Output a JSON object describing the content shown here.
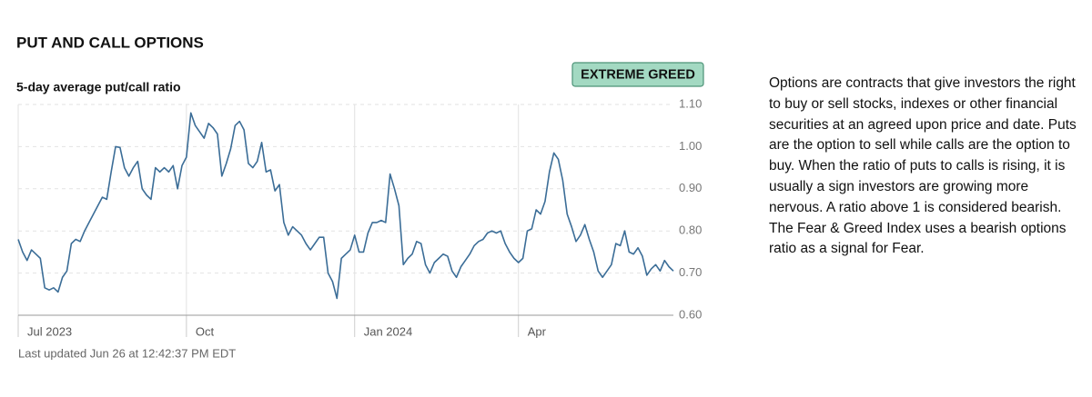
{
  "title": "PUT AND CALL OPTIONS",
  "badge": "EXTREME GREED",
  "footer": "Last updated Jun 26 at 12:42:37 PM EDT",
  "description": "Options are contracts that give investors the right to buy or sell stocks, indexes or other financial securities at an agreed upon price and date. Puts are the option to sell while calls are the option to buy. When the ratio of puts to calls is rising, it is usually a sign investors are growing more nervous. A ratio above 1 is considered bearish. The Fear & Greed Index uses a bearish options ratio as a signal for Fear.",
  "chart_data": {
    "type": "line",
    "title": "5-day average put/call ratio",
    "color": "#3b6d97",
    "grid": true,
    "values": [
      0.78,
      0.75,
      0.73,
      0.755,
      0.745,
      0.735,
      0.665,
      0.66,
      0.665,
      0.655,
      0.69,
      0.705,
      0.77,
      0.78,
      0.775,
      0.8,
      0.82,
      0.84,
      0.86,
      0.88,
      0.875,
      0.94,
      1.0,
      0.998,
      0.95,
      0.93,
      0.95,
      0.965,
      0.9,
      0.885,
      0.875,
      0.95,
      0.94,
      0.95,
      0.94,
      0.955,
      0.9,
      0.955,
      0.975,
      1.08,
      1.05,
      1.035,
      1.02,
      1.055,
      1.045,
      1.03,
      0.93,
      0.96,
      0.995,
      1.05,
      1.06,
      1.04,
      0.96,
      0.95,
      0.965,
      1.01,
      0.94,
      0.945,
      0.895,
      0.91,
      0.82,
      0.79,
      0.81,
      0.8,
      0.79,
      0.77,
      0.755,
      0.77,
      0.785,
      0.785,
      0.7,
      0.68,
      0.64,
      0.735,
      0.745,
      0.755,
      0.79,
      0.75,
      0.75,
      0.795,
      0.82,
      0.82,
      0.825,
      0.82,
      0.935,
      0.9,
      0.86,
      0.72,
      0.735,
      0.745,
      0.775,
      0.77,
      0.72,
      0.7,
      0.725,
      0.735,
      0.745,
      0.74,
      0.705,
      0.69,
      0.715,
      0.73,
      0.745,
      0.765,
      0.775,
      0.78,
      0.795,
      0.8,
      0.795,
      0.8,
      0.77,
      0.75,
      0.735,
      0.725,
      0.735,
      0.8,
      0.805,
      0.85,
      0.84,
      0.87,
      0.94,
      0.985,
      0.97,
      0.92,
      0.84,
      0.81,
      0.775,
      0.79,
      0.815,
      0.78,
      0.75,
      0.705,
      0.69,
      0.705,
      0.72,
      0.77,
      0.765,
      0.8,
      0.75,
      0.745,
      0.76,
      0.74,
      0.695,
      0.71,
      0.72,
      0.705,
      0.73,
      0.715,
      0.705
    ],
    "xlim": [
      0,
      148
    ],
    "xticks": [
      {
        "value": 0,
        "label": "Jul 2023"
      },
      {
        "value": 38,
        "label": "Oct"
      },
      {
        "value": 76,
        "label": "Jan 2024"
      },
      {
        "value": 113,
        "label": "Apr"
      }
    ],
    "ylim": [
      0.6,
      1.1
    ],
    "yticks": [
      {
        "value": 0.6,
        "label": "0.60"
      },
      {
        "value": 0.7,
        "label": "0.70"
      },
      {
        "value": 0.8,
        "label": "0.80"
      },
      {
        "value": 0.9,
        "label": "0.90"
      },
      {
        "value": 1.0,
        "label": "1.00"
      },
      {
        "value": 1.1,
        "label": "1.10"
      }
    ]
  }
}
